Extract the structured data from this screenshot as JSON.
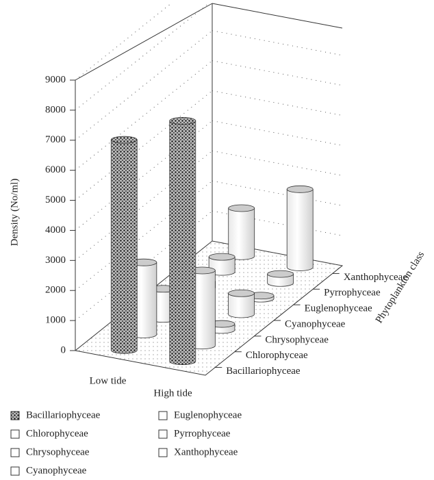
{
  "chart_data": {
    "type": "bar3d",
    "categories": [
      "Low tide",
      "High tide"
    ],
    "ylabel": "Density (No/ml)",
    "zlabel": "Phytoplankton class",
    "ylim": [
      0,
      9000
    ],
    "yticks": [
      0,
      1000,
      2000,
      3000,
      4000,
      5000,
      6000,
      7000,
      8000,
      9000
    ],
    "grid": true,
    "series": [
      {
        "name": "Bacillariophyceae",
        "color": "#555555",
        "pattern": "dots",
        "values": [
          7000,
          8000
        ]
      },
      {
        "name": "Chlorophyceae",
        "color": "#ffffff",
        "values": [
          2400,
          2500
        ]
      },
      {
        "name": "Chrysophyceae",
        "color": "#ffffff",
        "values": [
          1000,
          200
        ]
      },
      {
        "name": "Cyanophyceae",
        "color": "#ffffff",
        "values": [
          1200,
          700
        ]
      },
      {
        "name": "Euglenophyceae",
        "color": "#ffffff",
        "values": [
          200,
          100
        ]
      },
      {
        "name": "Pyrrophyceae",
        "color": "#ffffff",
        "values": [
          500,
          300
        ]
      },
      {
        "name": "Xanthophyceae",
        "color": "#ffffff",
        "values": [
          1600,
          2600
        ]
      }
    ]
  }
}
